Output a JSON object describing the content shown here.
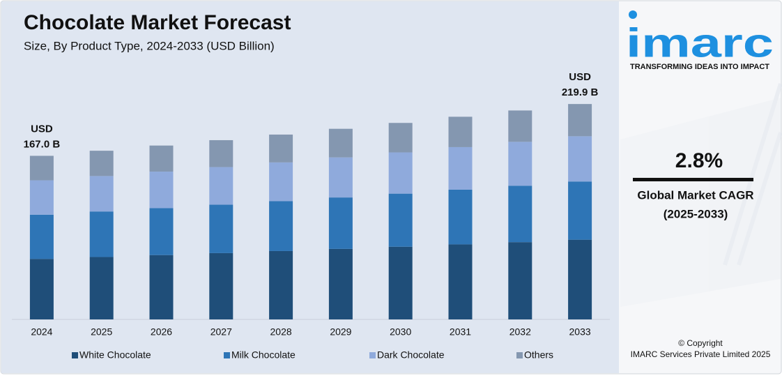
{
  "chart_data": {
    "type": "bar",
    "stacked": true,
    "title": "Chocolate Market Forecast",
    "subtitle": "Size, By Product Type, 2024-2033 (USD Billion)",
    "categories": [
      "2024",
      "2025",
      "2026",
      "2027",
      "2028",
      "2029",
      "2030",
      "2031",
      "2032",
      "2033"
    ],
    "series": [
      {
        "name": "White Chocolate",
        "color": "#1f4e79",
        "values": [
          61.8,
          63.7,
          65.7,
          67.7,
          69.8,
          72.0,
          74.2,
          76.6,
          78.9,
          81.4
        ]
      },
      {
        "name": "Milk Chocolate",
        "color": "#2e75b6",
        "values": [
          45.1,
          46.5,
          47.9,
          49.4,
          50.9,
          52.5,
          54.2,
          55.9,
          57.6,
          59.4
        ]
      },
      {
        "name": "Dark Chocolate",
        "color": "#8faadc",
        "values": [
          35.1,
          36.2,
          37.3,
          38.4,
          39.6,
          40.9,
          42.1,
          43.4,
          44.8,
          46.2
        ]
      },
      {
        "name": "Others",
        "color": "#8497b0",
        "values": [
          25.0,
          25.8,
          26.6,
          27.5,
          28.4,
          29.2,
          30.1,
          31.0,
          32.0,
          32.9
        ]
      }
    ],
    "annotations": [
      {
        "category": 0,
        "value": 167.0,
        "lines": [
          "USD",
          "167.0 B"
        ]
      },
      {
        "category": 9,
        "value": 219.9,
        "lines": [
          "USD",
          "219.9 B"
        ]
      }
    ],
    "ylim": [
      0,
      220
    ],
    "legend": "bottom"
  },
  "sidebar": {
    "logo": "imarc",
    "tagline": "TRANSFORMING IDEAS INTO IMPACT",
    "cagr": "2.8%",
    "cagr_label": "Global Market CAGR",
    "cagr_period": "(2025-2033)",
    "copyright": "© Copyright",
    "company": "IMARC Services Private Limited 2025"
  }
}
